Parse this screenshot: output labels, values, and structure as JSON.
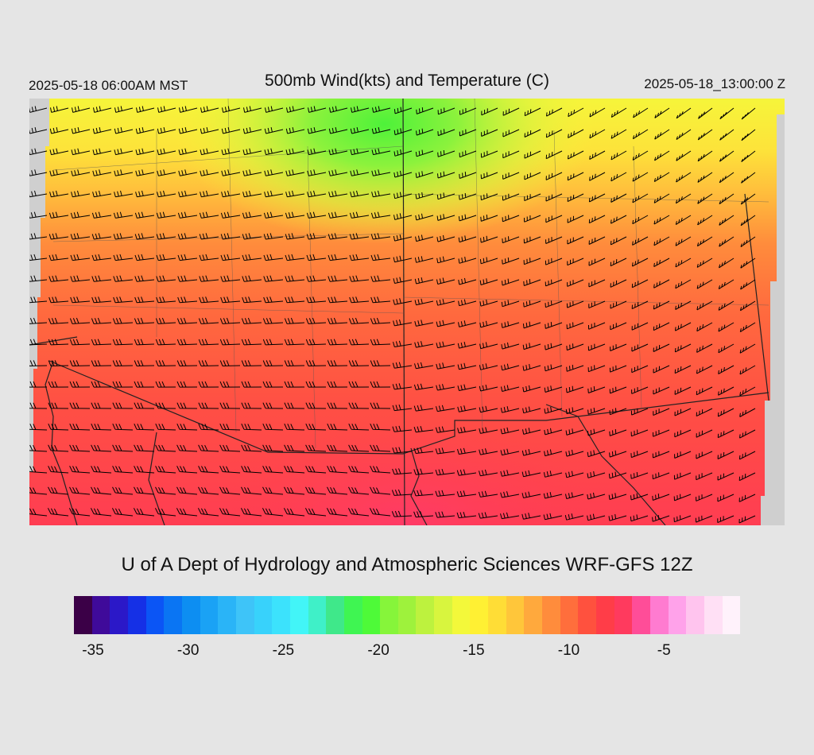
{
  "header": {
    "valid_time": "2025-05-18 06:00AM MST",
    "title": "500mb Wind(kts) and Temperature (C)",
    "init_time": "2025-05-18_13:00:00 Z"
  },
  "credit": "U of A Dept of Hydrology and Atmospheric Sciences WRF-GFS 12Z",
  "colorbar": {
    "colors": [
      "#3b0047",
      "#3f0a9a",
      "#2b18c8",
      "#1530e6",
      "#0b55f5",
      "#0a75f3",
      "#0d8ef2",
      "#1aa2f5",
      "#2ab4f7",
      "#3ec4f8",
      "#38d2fb",
      "#3ce2fc",
      "#42f5f7",
      "#3ff0c8",
      "#3fe88a",
      "#3ff552",
      "#4efa38",
      "#86f53a",
      "#9ef23c",
      "#bdf23e",
      "#d8f53e",
      "#f3f83a",
      "#fff033",
      "#ffdd36",
      "#ffc63a",
      "#ffa93d",
      "#ff8c3c",
      "#ff6e3c",
      "#ff513e",
      "#ff3d48",
      "#ff3a5e",
      "#ff4d98",
      "#ff7bd0",
      "#ffa2ea",
      "#ffc4ee",
      "#ffe0f5",
      "#fff2fb"
    ],
    "ticks": [
      {
        "label": "-35",
        "value": -35
      },
      {
        "label": "-30",
        "value": -30
      },
      {
        "label": "-25",
        "value": -25
      },
      {
        "label": "-20",
        "value": -20
      },
      {
        "label": "-15",
        "value": -15
      },
      {
        "label": "-10",
        "value": -10
      },
      {
        "label": "-5",
        "value": -5
      }
    ],
    "min_value": -36,
    "max_value": -1
  },
  "map": {
    "field": "500mb temperature",
    "units": "C",
    "wind_barb_color": "#000000",
    "border_color": "#222222",
    "background_color": "#cfcfcf"
  }
}
